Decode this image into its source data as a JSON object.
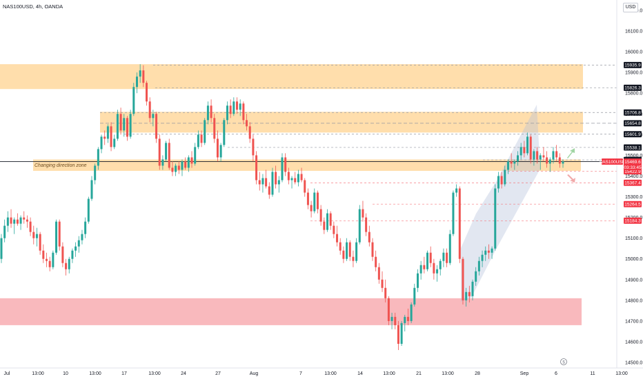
{
  "header": {
    "symbol": "NAS100USD, 4h, OANDA",
    "currency": "USD"
  },
  "annotations": {
    "zone_label": "Changing direction zone"
  },
  "colors": {
    "bull": "#26a69a",
    "bear": "#ef5350",
    "zone_orange": "#ffcc80",
    "zone_red": "#f7a1a7",
    "channel": "#b2bfd9",
    "price_line": "#131722",
    "tag_red": "#f23645"
  },
  "chart_data": {
    "type": "candlestick",
    "title": "NAS100USD, 4h, OANDA",
    "yaxis_ticks": [
      16200,
      16100,
      16000,
      15900,
      15800,
      15700,
      15600,
      15500,
      15400,
      15300,
      15200,
      15100,
      15000,
      14900,
      14800,
      14700,
      14600,
      14500
    ],
    "ylim": [
      14470,
      16230
    ],
    "xaxis_ticks": [
      "Jul",
      "13:00",
      "10",
      "13:00",
      "17",
      "13:00",
      "24",
      "27",
      "Aug",
      "7",
      "13:00",
      "14",
      "13:00",
      "21",
      "13:00",
      "28",
      "Sep",
      "6",
      "11",
      "13:00"
    ],
    "level_tags": [
      {
        "value": "15935.9",
        "style": "dark"
      },
      {
        "value": "15826.3",
        "style": "dark"
      },
      {
        "value": "15706.8",
        "style": "dark"
      },
      {
        "value": "15654.8",
        "style": "dark"
      },
      {
        "value": "15601.9",
        "style": "dark"
      },
      {
        "value": "15538.1",
        "style": "dark"
      },
      {
        "value": "15477.8",
        "style": "dark"
      },
      {
        "value": "15422.9",
        "style": "red"
      },
      {
        "value": "15367.4",
        "style": "red"
      },
      {
        "value": "15264.5",
        "style": "red"
      },
      {
        "value": "15184.3",
        "style": "red"
      }
    ],
    "last_price": {
      "symbol": "NAS100USD",
      "value": "15469.6",
      "countdown": "03:33:45"
    },
    "zones": [
      {
        "kind": "resistance",
        "from": 15820,
        "to": 15940
      },
      {
        "kind": "resistance",
        "from": 15610,
        "to": 15710
      },
      {
        "kind": "changing-direction",
        "from": 15425,
        "to": 15480
      },
      {
        "kind": "support",
        "from": 14680,
        "to": 14810
      }
    ],
    "candles": [
      [
        15000,
        15120,
        14980,
        15100
      ],
      [
        15100,
        15190,
        15080,
        15160
      ],
      [
        15160,
        15230,
        15130,
        15200
      ],
      [
        15200,
        15240,
        15150,
        15170
      ],
      [
        15170,
        15200,
        15120,
        15190
      ],
      [
        15190,
        15220,
        15160,
        15170
      ],
      [
        15170,
        15210,
        15140,
        15200
      ],
      [
        15200,
        15230,
        15170,
        15190
      ],
      [
        15190,
        15210,
        15150,
        15180
      ],
      [
        15180,
        15200,
        15110,
        15130
      ],
      [
        15130,
        15160,
        15070,
        15100
      ],
      [
        15100,
        15150,
        15060,
        15120
      ],
      [
        15120,
        15130,
        15020,
        15040
      ],
      [
        15040,
        15070,
        14980,
        15000
      ],
      [
        15000,
        15030,
        14960,
        14990
      ],
      [
        14990,
        15010,
        14940,
        14960
      ],
      [
        14960,
        15040,
        14950,
        15030
      ],
      [
        15030,
        15190,
        15020,
        15180
      ],
      [
        15180,
        15190,
        15040,
        15060
      ],
      [
        15060,
        15080,
        14960,
        14980
      ],
      [
        14980,
        15000,
        14920,
        14950
      ],
      [
        14950,
        15010,
        14930,
        15000
      ],
      [
        15000,
        15050,
        14980,
        15040
      ],
      [
        15040,
        15080,
        15010,
        15060
      ],
      [
        15060,
        15110,
        15030,
        15090
      ],
      [
        15090,
        15140,
        15070,
        15120
      ],
      [
        15120,
        15200,
        15100,
        15180
      ],
      [
        15180,
        15300,
        15170,
        15290
      ],
      [
        15290,
        15400,
        15280,
        15380
      ],
      [
        15380,
        15460,
        15360,
        15450
      ],
      [
        15450,
        15540,
        15430,
        15530
      ],
      [
        15530,
        15600,
        15510,
        15590
      ],
      [
        15590,
        15620,
        15550,
        15580
      ],
      [
        15580,
        15650,
        15560,
        15640
      ],
      [
        15640,
        15660,
        15520,
        15540
      ],
      [
        15540,
        15600,
        15530,
        15580
      ],
      [
        15580,
        15720,
        15570,
        15700
      ],
      [
        15700,
        15730,
        15600,
        15620
      ],
      [
        15620,
        15700,
        15590,
        15680
      ],
      [
        15680,
        15690,
        15570,
        15590
      ],
      [
        15590,
        15720,
        15580,
        15700
      ],
      [
        15700,
        15850,
        15690,
        15830
      ],
      [
        15830,
        15900,
        15800,
        15880
      ],
      [
        15880,
        15940,
        15850,
        15910
      ],
      [
        15910,
        15935,
        15830,
        15850
      ],
      [
        15850,
        15860,
        15740,
        15760
      ],
      [
        15760,
        15780,
        15660,
        15680
      ],
      [
        15680,
        15720,
        15640,
        15700
      ],
      [
        15700,
        15710,
        15560,
        15580
      ],
      [
        15580,
        15600,
        15430,
        15450
      ],
      [
        15450,
        15500,
        15430,
        15480
      ],
      [
        15480,
        15570,
        15470,
        15560
      ],
      [
        15560,
        15580,
        15430,
        15440
      ],
      [
        15440,
        15470,
        15400,
        15420
      ],
      [
        15420,
        15460,
        15400,
        15450
      ],
      [
        15450,
        15470,
        15410,
        15430
      ],
      [
        15430,
        15480,
        15400,
        15470
      ],
      [
        15470,
        15490,
        15430,
        15440
      ],
      [
        15440,
        15500,
        15420,
        15490
      ],
      [
        15490,
        15520,
        15440,
        15460
      ],
      [
        15460,
        15560,
        15450,
        15540
      ],
      [
        15540,
        15620,
        15530,
        15600
      ],
      [
        15600,
        15620,
        15540,
        15560
      ],
      [
        15560,
        15680,
        15550,
        15670
      ],
      [
        15670,
        15760,
        15650,
        15740
      ],
      [
        15740,
        15770,
        15660,
        15680
      ],
      [
        15680,
        15700,
        15560,
        15580
      ],
      [
        15580,
        15620,
        15470,
        15490
      ],
      [
        15490,
        15560,
        15470,
        15550
      ],
      [
        15550,
        15680,
        15540,
        15670
      ],
      [
        15670,
        15760,
        15650,
        15740
      ],
      [
        15740,
        15770,
        15680,
        15700
      ],
      [
        15700,
        15780,
        15690,
        15760
      ],
      [
        15760,
        15780,
        15700,
        15720
      ],
      [
        15720,
        15770,
        15690,
        15750
      ],
      [
        15750,
        15760,
        15650,
        15670
      ],
      [
        15670,
        15700,
        15620,
        15640
      ],
      [
        15640,
        15660,
        15560,
        15580
      ],
      [
        15580,
        15600,
        15470,
        15500
      ],
      [
        15500,
        15520,
        15360,
        15380
      ],
      [
        15380,
        15420,
        15330,
        15360
      ],
      [
        15360,
        15410,
        15320,
        15390
      ],
      [
        15390,
        15430,
        15340,
        15350
      ],
      [
        15350,
        15370,
        15290,
        15310
      ],
      [
        15310,
        15440,
        15300,
        15420
      ],
      [
        15420,
        15450,
        15340,
        15360
      ],
      [
        15360,
        15400,
        15320,
        15380
      ],
      [
        15380,
        15510,
        15370,
        15490
      ],
      [
        15490,
        15510,
        15400,
        15420
      ],
      [
        15420,
        15440,
        15360,
        15380
      ],
      [
        15380,
        15400,
        15340,
        15390
      ],
      [
        15390,
        15420,
        15360,
        15370
      ],
      [
        15370,
        15430,
        15350,
        15410
      ],
      [
        15410,
        15440,
        15370,
        15380
      ],
      [
        15380,
        15390,
        15300,
        15320
      ],
      [
        15320,
        15340,
        15240,
        15260
      ],
      [
        15260,
        15280,
        15200,
        15230
      ],
      [
        15230,
        15340,
        15220,
        15320
      ],
      [
        15320,
        15330,
        15220,
        15240
      ],
      [
        15240,
        15260,
        15160,
        15180
      ],
      [
        15180,
        15200,
        15120,
        15140
      ],
      [
        15140,
        15240,
        15130,
        15220
      ],
      [
        15220,
        15230,
        15140,
        15160
      ],
      [
        15160,
        15180,
        15100,
        15120
      ],
      [
        15120,
        15160,
        15060,
        15080
      ],
      [
        15080,
        15100,
        15020,
        15040
      ],
      [
        15040,
        15060,
        14980,
        15000
      ],
      [
        15000,
        15100,
        14990,
        15080
      ],
      [
        15080,
        15090,
        14990,
        15010
      ],
      [
        15010,
        15040,
        14960,
        14990
      ],
      [
        14990,
        15100,
        14980,
        15080
      ],
      [
        15080,
        15260,
        15070,
        15240
      ],
      [
        15240,
        15280,
        15180,
        15200
      ],
      [
        15200,
        15220,
        15110,
        15130
      ],
      [
        15130,
        15160,
        15060,
        15080
      ],
      [
        15080,
        15100,
        14990,
        15010
      ],
      [
        15010,
        15040,
        14940,
        14960
      ],
      [
        14960,
        14980,
        14880,
        14900
      ],
      [
        14900,
        14940,
        14840,
        14860
      ],
      [
        14860,
        14900,
        14790,
        14810
      ],
      [
        14810,
        14820,
        14680,
        14700
      ],
      [
        14700,
        14740,
        14660,
        14720
      ],
      [
        14720,
        14740,
        14660,
        14680
      ],
      [
        14680,
        14700,
        14560,
        14590
      ],
      [
        14590,
        14700,
        14580,
        14690
      ],
      [
        14690,
        14730,
        14650,
        14720
      ],
      [
        14720,
        14760,
        14680,
        14700
      ],
      [
        14700,
        14790,
        14690,
        14780
      ],
      [
        14780,
        14880,
        14770,
        14860
      ],
      [
        14860,
        14950,
        14840,
        14930
      ],
      [
        14930,
        14990,
        14900,
        14970
      ],
      [
        14970,
        15010,
        14930,
        14950
      ],
      [
        14950,
        15040,
        14940,
        15030
      ],
      [
        15030,
        15060,
        14960,
        14980
      ],
      [
        14980,
        15000,
        14900,
        14930
      ],
      [
        14930,
        14970,
        14890,
        14950
      ],
      [
        14950,
        15000,
        14920,
        14990
      ],
      [
        14990,
        15050,
        14960,
        15030
      ],
      [
        15030,
        15050,
        14960,
        14980
      ],
      [
        14980,
        15140,
        14970,
        15120
      ],
      [
        15120,
        15330,
        15110,
        15320
      ],
      [
        15320,
        15360,
        15300,
        15340
      ],
      [
        15340,
        15350,
        14980,
        15000
      ],
      [
        15000,
        15010,
        14780,
        14800
      ],
      [
        14800,
        14860,
        14770,
        14840
      ],
      [
        14840,
        14870,
        14790,
        14820
      ],
      [
        14820,
        14900,
        14800,
        14890
      ],
      [
        14890,
        14960,
        14870,
        14940
      ],
      [
        14940,
        15010,
        14920,
        14990
      ],
      [
        14990,
        15040,
        14960,
        15020
      ],
      [
        15020,
        15060,
        14990,
        15040
      ],
      [
        15040,
        15070,
        15000,
        15030
      ],
      [
        15030,
        15060,
        15000,
        15050
      ],
      [
        15050,
        15360,
        15040,
        15340
      ],
      [
        15340,
        15420,
        15320,
        15400
      ],
      [
        15400,
        15420,
        15340,
        15360
      ],
      [
        15360,
        15450,
        15350,
        15430
      ],
      [
        15430,
        15480,
        15410,
        15470
      ],
      [
        15470,
        15510,
        15440,
        15460
      ],
      [
        15460,
        15480,
        15430,
        15470
      ],
      [
        15470,
        15520,
        15450,
        15500
      ],
      [
        15500,
        15560,
        15480,
        15540
      ],
      [
        15540,
        15570,
        15490,
        15510
      ],
      [
        15510,
        15610,
        15500,
        15590
      ],
      [
        15590,
        15600,
        15460,
        15480
      ],
      [
        15480,
        15530,
        15450,
        15520
      ],
      [
        15520,
        15540,
        15460,
        15480
      ],
      [
        15480,
        15510,
        15430,
        15500
      ],
      [
        15500,
        15540,
        15470,
        15490
      ],
      [
        15490,
        15520,
        15440,
        15460
      ],
      [
        15460,
        15490,
        15420,
        15480
      ],
      [
        15480,
        15540,
        15460,
        15520
      ],
      [
        15520,
        15550,
        15470,
        15490
      ],
      [
        15490,
        15510,
        15440,
        15460
      ],
      [
        15460,
        15480,
        15440,
        15470
      ]
    ]
  }
}
